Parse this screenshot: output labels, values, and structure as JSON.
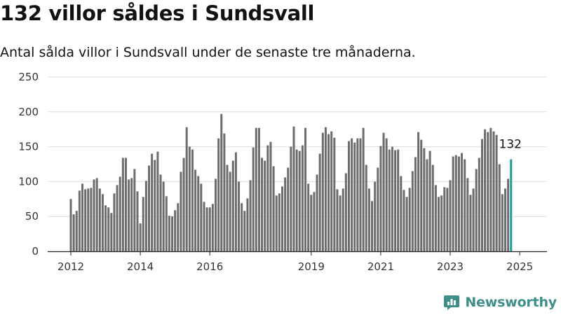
{
  "chart_data": {
    "type": "bar",
    "title": "132 villor såldes i Sundsvall",
    "subtitle": "Antal sålda villor i Sundsvall under de senaste tre månaderna.",
    "y_ticks": [
      0,
      50,
      100,
      150,
      200,
      250
    ],
    "ylim": [
      0,
      250
    ],
    "grid": true,
    "x_tick_labels": [
      {
        "label": "2012",
        "index": 0
      },
      {
        "label": "2014",
        "index": 24
      },
      {
        "label": "2016",
        "index": 48
      },
      {
        "label": "2019",
        "index": 83
      },
      {
        "label": "2021",
        "index": 107
      },
      {
        "label": "2023",
        "index": 131
      },
      {
        "label": "2025",
        "index": 155
      }
    ],
    "series": [
      {
        "values": [
          75,
          53,
          58,
          87,
          97,
          89,
          90,
          91,
          103,
          105,
          90,
          82,
          66,
          63,
          55,
          83,
          95,
          107,
          134,
          134,
          103,
          105,
          118,
          86,
          40,
          78,
          101,
          123,
          140,
          131,
          143,
          110,
          100,
          79,
          51,
          50,
          59,
          69,
          114,
          134,
          178,
          150,
          146,
          117,
          108,
          97,
          71,
          63,
          63,
          68,
          104,
          162,
          197,
          169,
          124,
          114,
          130,
          142,
          100,
          69,
          58,
          76,
          102,
          149,
          177,
          177,
          134,
          130,
          152,
          157,
          122,
          80,
          83,
          93,
          106,
          120,
          150,
          179,
          146,
          144,
          152,
          177,
          97,
          81,
          85,
          110,
          140,
          170,
          178,
          168,
          172,
          163,
          89,
          80,
          90,
          112,
          158,
          162,
          156,
          162,
          162,
          177,
          124,
          90,
          72,
          100,
          120,
          151,
          170,
          162,
          146,
          150,
          145,
          146,
          108,
          88,
          78,
          91,
          115,
          135,
          171,
          160,
          148,
          132,
          144,
          124,
          95,
          78,
          80,
          92,
          91,
          102,
          136,
          138,
          136,
          141,
          132,
          105,
          81,
          90,
          118,
          134,
          161,
          175,
          171,
          177,
          172,
          167,
          125,
          82,
          90,
          104,
          132
        ]
      }
    ],
    "highlight": {
      "label": "132",
      "value": 132,
      "color": "#1b9e95"
    },
    "bar_color": "#6d6d70"
  },
  "brand": {
    "name": "Newsworthy",
    "icon": "newsworthy-logo-icon",
    "color": "#3e8f8a"
  }
}
